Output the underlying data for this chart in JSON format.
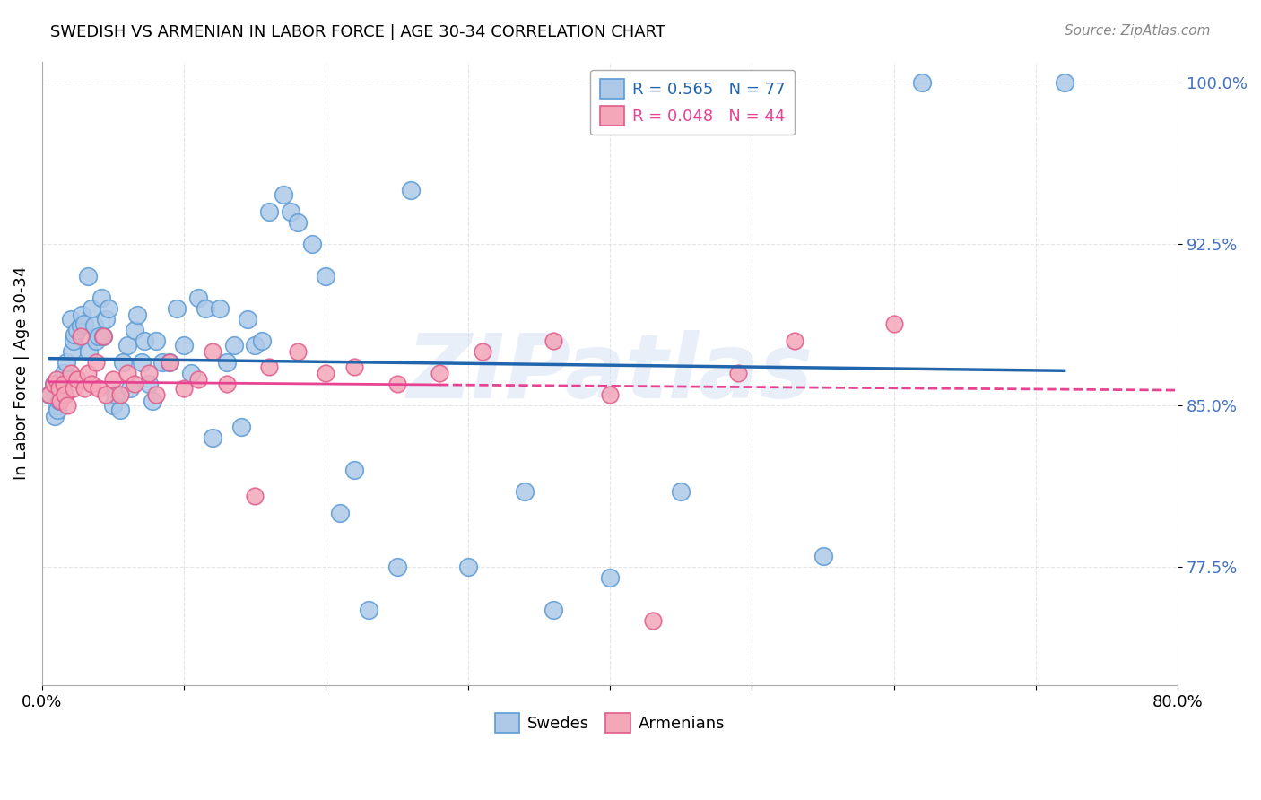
{
  "title": "SWEDISH VS ARMENIAN IN LABOR FORCE | AGE 30-34 CORRELATION CHART",
  "source": "Source: ZipAtlas.com",
  "ylabel": "In Labor Force | Age 30-34",
  "xlim": [
    0.0,
    0.8
  ],
  "ylim": [
    0.72,
    1.01
  ],
  "yticks": [
    0.775,
    0.85,
    0.925,
    1.0
  ],
  "ytick_labels": [
    "77.5%",
    "85.0%",
    "92.5%",
    "100.0%"
  ],
  "xticks": [
    0.0,
    0.1,
    0.2,
    0.3,
    0.4,
    0.5,
    0.6,
    0.7,
    0.8
  ],
  "xtick_labels": [
    "0.0%",
    "",
    "",
    "",
    "",
    "",
    "",
    "",
    "80.0%"
  ],
  "watermark": "ZIPatlas",
  "legend_entry_swede": "R = 0.565   N = 77",
  "legend_entry_armenian": "R = 0.048   N = 44",
  "legend_labels": [
    "Swedes",
    "Armenians"
  ],
  "swede_color": "#aec9e8",
  "armenian_color": "#f4a7b9",
  "swede_edge_color": "#5b9bd5",
  "armenian_edge_color": "#e05c8a",
  "swede_line_color": "#2166ac",
  "armenian_line_color": "#e84393",
  "background_color": "#ffffff",
  "swedes_x": [
    0.005,
    0.008,
    0.009,
    0.01,
    0.011,
    0.012,
    0.013,
    0.014,
    0.015,
    0.016,
    0.017,
    0.018,
    0.02,
    0.021,
    0.022,
    0.023,
    0.025,
    0.027,
    0.028,
    0.03,
    0.032,
    0.033,
    0.035,
    0.037,
    0.038,
    0.04,
    0.042,
    0.043,
    0.045,
    0.047,
    0.05,
    0.052,
    0.055,
    0.057,
    0.06,
    0.062,
    0.065,
    0.067,
    0.07,
    0.072,
    0.075,
    0.078,
    0.08,
    0.085,
    0.09,
    0.095,
    0.1,
    0.105,
    0.11,
    0.115,
    0.12,
    0.125,
    0.13,
    0.135,
    0.14,
    0.145,
    0.15,
    0.155,
    0.16,
    0.17,
    0.175,
    0.18,
    0.19,
    0.2,
    0.21,
    0.22,
    0.23,
    0.25,
    0.26,
    0.3,
    0.34,
    0.36,
    0.4,
    0.45,
    0.55,
    0.62,
    0.72
  ],
  "swedes_y": [
    0.855,
    0.86,
    0.845,
    0.85,
    0.848,
    0.852,
    0.853,
    0.858,
    0.865,
    0.855,
    0.87,
    0.862,
    0.89,
    0.875,
    0.88,
    0.883,
    0.885,
    0.887,
    0.892,
    0.888,
    0.91,
    0.875,
    0.895,
    0.887,
    0.88,
    0.882,
    0.9,
    0.882,
    0.89,
    0.895,
    0.85,
    0.855,
    0.848,
    0.87,
    0.878,
    0.858,
    0.885,
    0.892,
    0.87,
    0.88,
    0.86,
    0.852,
    0.88,
    0.87,
    0.87,
    0.895,
    0.878,
    0.865,
    0.9,
    0.895,
    0.835,
    0.895,
    0.87,
    0.878,
    0.84,
    0.89,
    0.878,
    0.88,
    0.94,
    0.948,
    0.94,
    0.935,
    0.925,
    0.91,
    0.8,
    0.82,
    0.755,
    0.775,
    0.95,
    0.775,
    0.81,
    0.755,
    0.77,
    0.81,
    0.78,
    1.0,
    1.0
  ],
  "armenians_x": [
    0.005,
    0.008,
    0.01,
    0.012,
    0.013,
    0.015,
    0.016,
    0.018,
    0.02,
    0.022,
    0.025,
    0.027,
    0.03,
    0.032,
    0.035,
    0.038,
    0.04,
    0.043,
    0.045,
    0.05,
    0.055,
    0.06,
    0.065,
    0.075,
    0.08,
    0.09,
    0.1,
    0.11,
    0.12,
    0.13,
    0.15,
    0.16,
    0.18,
    0.2,
    0.22,
    0.25,
    0.28,
    0.31,
    0.36,
    0.4,
    0.43,
    0.49,
    0.53,
    0.6
  ],
  "armenians_y": [
    0.855,
    0.86,
    0.862,
    0.858,
    0.852,
    0.86,
    0.855,
    0.85,
    0.865,
    0.858,
    0.862,
    0.882,
    0.858,
    0.865,
    0.86,
    0.87,
    0.858,
    0.882,
    0.855,
    0.862,
    0.855,
    0.865,
    0.86,
    0.865,
    0.855,
    0.87,
    0.858,
    0.862,
    0.875,
    0.86,
    0.808,
    0.868,
    0.875,
    0.865,
    0.868,
    0.86,
    0.865,
    0.875,
    0.88,
    0.855,
    0.75,
    0.865,
    0.88,
    0.888
  ]
}
